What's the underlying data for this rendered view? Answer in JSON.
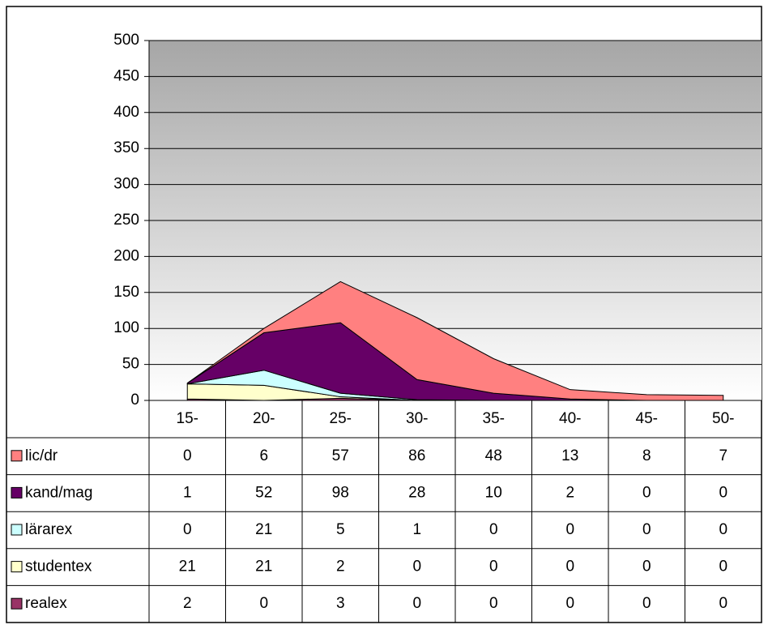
{
  "chart_data": {
    "type": "stacked_area",
    "categories": [
      "15-",
      "20-",
      "25-",
      "30-",
      "35-",
      "40-",
      "45-",
      "50-"
    ],
    "series": [
      {
        "name": "lic/dr",
        "color": "#ff8080",
        "values": [
          0,
          6,
          57,
          86,
          48,
          13,
          8,
          7
        ]
      },
      {
        "name": "kand/mag",
        "color": "#660066",
        "values": [
          1,
          52,
          98,
          28,
          10,
          2,
          0,
          0
        ]
      },
      {
        "name": "lärarex",
        "color": "#ccffff",
        "values": [
          0,
          21,
          5,
          1,
          0,
          0,
          0,
          0
        ]
      },
      {
        "name": "studentex",
        "color": "#ffffcc",
        "values": [
          21,
          21,
          2,
          0,
          0,
          0,
          0,
          0
        ]
      },
      {
        "name": "realex",
        "color": "#993366",
        "values": [
          2,
          0,
          3,
          0,
          0,
          0,
          0,
          0
        ]
      }
    ],
    "ylim": [
      0,
      500
    ],
    "yticks": [
      0,
      50,
      100,
      150,
      200,
      250,
      300,
      350,
      400,
      450,
      500
    ],
    "grid": true
  }
}
